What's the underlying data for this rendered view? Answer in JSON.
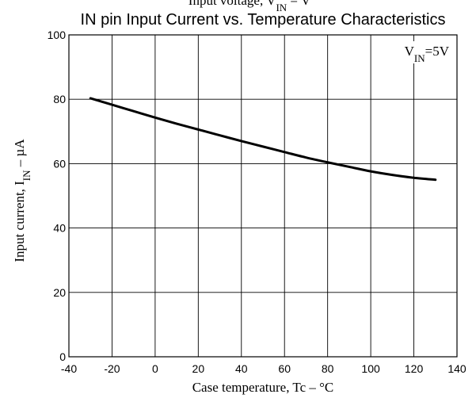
{
  "chart_data": {
    "type": "line",
    "title": "IN pin Input Current vs. Temperature Characteristics",
    "partial_top_label": "Input voltage, V",
    "partial_top_label_sub": "IN",
    "partial_top_label_suffix": " = V",
    "xlabel": "Case temperature, Tc – °C",
    "ylabel_prefix": "Input current, I",
    "ylabel_sub": "IN",
    "ylabel_suffix": " – µA",
    "xlim": [
      -40,
      140
    ],
    "ylim": [
      0,
      100
    ],
    "x_ticks": [
      -40,
      -20,
      0,
      20,
      40,
      60,
      80,
      100,
      120,
      140
    ],
    "y_ticks": [
      0,
      20,
      40,
      60,
      80,
      100
    ],
    "x_tick_labels": [
      "-40",
      "-20",
      "0",
      "20",
      "40",
      "60",
      "80",
      "100",
      "120",
      "140"
    ],
    "y_tick_labels": [
      "0",
      "20",
      "40",
      "60",
      "80",
      "100"
    ],
    "grid": true,
    "annotation": {
      "prefix": "V",
      "sub": "IN",
      "suffix": "=5V",
      "placement": "top-right"
    },
    "series": [
      {
        "x": [
          -30,
          -20,
          -10,
          0,
          10,
          20,
          30,
          40,
          50,
          60,
          70,
          80,
          90,
          100,
          110,
          120,
          130
        ],
        "y": [
          80.3,
          78.3,
          76.3,
          74.3,
          72.4,
          70.6,
          68.8,
          67.0,
          65.3,
          63.6,
          61.9,
          60.4,
          59.0,
          57.6,
          56.5,
          55.6,
          55.0
        ]
      }
    ],
    "colors": {
      "line": "#000000",
      "grid": "#000000",
      "background": "#ffffff"
    }
  }
}
